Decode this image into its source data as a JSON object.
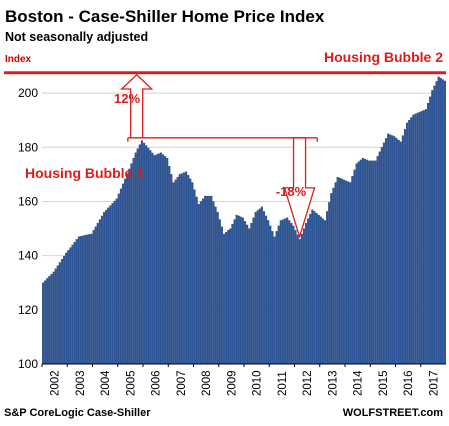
{
  "chart_data": {
    "type": "bar",
    "title": "Boston - Case-Shiller Home Price Index",
    "subtitle": "Not seasonally adjusted",
    "ylabel": "Index",
    "ylim": [
      100,
      210
    ],
    "yticks": [
      100,
      120,
      140,
      160,
      180,
      200
    ],
    "xticks": [
      "2002",
      "2003",
      "2004",
      "2005",
      "2006",
      "2007",
      "2008",
      "2009",
      "2010",
      "2011",
      "2012",
      "2013",
      "2014",
      "2015",
      "2016",
      "2017"
    ],
    "bar_color": "#2d5597",
    "anchors": [
      [
        "2002-01",
        130
      ],
      [
        "2002-06",
        134
      ],
      [
        "2002-12",
        141
      ],
      [
        "2003-06",
        147
      ],
      [
        "2003-12",
        148
      ],
      [
        "2004-06",
        156
      ],
      [
        "2004-12",
        161
      ],
      [
        "2005-06",
        172
      ],
      [
        "2005-09",
        178
      ],
      [
        "2005-12",
        182.5
      ],
      [
        "2006-06",
        177
      ],
      [
        "2006-09",
        178
      ],
      [
        "2006-12",
        176
      ],
      [
        "2007-03",
        167
      ],
      [
        "2007-06",
        170
      ],
      [
        "2007-09",
        171
      ],
      [
        "2007-12",
        167
      ],
      [
        "2008-03",
        159
      ],
      [
        "2008-06",
        162
      ],
      [
        "2008-09",
        162
      ],
      [
        "2008-12",
        156
      ],
      [
        "2009-03",
        148
      ],
      [
        "2009-06",
        150
      ],
      [
        "2009-09",
        155
      ],
      [
        "2009-12",
        154
      ],
      [
        "2010-03",
        150
      ],
      [
        "2010-06",
        156
      ],
      [
        "2010-09",
        158
      ],
      [
        "2010-12",
        153
      ],
      [
        "2011-03",
        147
      ],
      [
        "2011-06",
        153
      ],
      [
        "2011-09",
        154
      ],
      [
        "2011-12",
        151
      ],
      [
        "2012-03",
        146
      ],
      [
        "2012-06",
        152
      ],
      [
        "2012-09",
        157
      ],
      [
        "2012-12",
        155
      ],
      [
        "2013-03",
        153
      ],
      [
        "2013-06",
        163
      ],
      [
        "2013-09",
        169
      ],
      [
        "2013-12",
        168
      ],
      [
        "2014-03",
        167
      ],
      [
        "2014-06",
        174
      ],
      [
        "2014-09",
        176
      ],
      [
        "2014-12",
        175
      ],
      [
        "2015-03",
        175
      ],
      [
        "2015-06",
        180
      ],
      [
        "2015-09",
        185
      ],
      [
        "2015-12",
        184
      ],
      [
        "2016-03",
        182
      ],
      [
        "2016-06",
        189
      ],
      [
        "2016-09",
        192
      ],
      [
        "2016-12",
        193
      ],
      [
        "2017-03",
        194
      ],
      [
        "2017-06",
        201
      ],
      [
        "2017-09",
        206
      ],
      [
        "2017-12",
        204.5
      ]
    ],
    "annotations": {
      "bubble1": "Housing Bubble 1",
      "bubble2": "Housing Bubble 2",
      "up_pct": "12%",
      "down_pct": "-18%"
    },
    "reference_line": {
      "value": 207.5,
      "color": "#dd1c1c"
    },
    "source": "S&P CoreLogic Case-Shiller",
    "brand": "WOLFSTREET.com"
  }
}
